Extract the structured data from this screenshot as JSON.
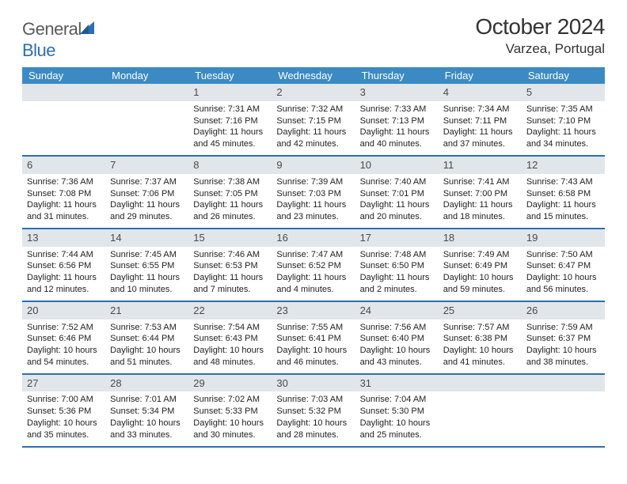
{
  "brand": {
    "name_gray": "General",
    "name_blue": "Blue"
  },
  "title": {
    "month": "October 2024",
    "location": "Varzea, Portugal"
  },
  "colors": {
    "header_bg": "#3b8ac4",
    "daynum_bg": "#e1e6ea",
    "week_border": "#2b6fb5",
    "text": "#222222",
    "logo_gray": "#5a5a5a",
    "logo_blue": "#2b6fb5"
  },
  "weekdays": [
    "Sunday",
    "Monday",
    "Tuesday",
    "Wednesday",
    "Thursday",
    "Friday",
    "Saturday"
  ],
  "weeks": [
    [
      {
        "n": "",
        "sr": "",
        "ss": "",
        "dl": ""
      },
      {
        "n": "",
        "sr": "",
        "ss": "",
        "dl": ""
      },
      {
        "n": "1",
        "sr": "Sunrise: 7:31 AM",
        "ss": "Sunset: 7:16 PM",
        "dl": "Daylight: 11 hours and 45 minutes."
      },
      {
        "n": "2",
        "sr": "Sunrise: 7:32 AM",
        "ss": "Sunset: 7:15 PM",
        "dl": "Daylight: 11 hours and 42 minutes."
      },
      {
        "n": "3",
        "sr": "Sunrise: 7:33 AM",
        "ss": "Sunset: 7:13 PM",
        "dl": "Daylight: 11 hours and 40 minutes."
      },
      {
        "n": "4",
        "sr": "Sunrise: 7:34 AM",
        "ss": "Sunset: 7:11 PM",
        "dl": "Daylight: 11 hours and 37 minutes."
      },
      {
        "n": "5",
        "sr": "Sunrise: 7:35 AM",
        "ss": "Sunset: 7:10 PM",
        "dl": "Daylight: 11 hours and 34 minutes."
      }
    ],
    [
      {
        "n": "6",
        "sr": "Sunrise: 7:36 AM",
        "ss": "Sunset: 7:08 PM",
        "dl": "Daylight: 11 hours and 31 minutes."
      },
      {
        "n": "7",
        "sr": "Sunrise: 7:37 AM",
        "ss": "Sunset: 7:06 PM",
        "dl": "Daylight: 11 hours and 29 minutes."
      },
      {
        "n": "8",
        "sr": "Sunrise: 7:38 AM",
        "ss": "Sunset: 7:05 PM",
        "dl": "Daylight: 11 hours and 26 minutes."
      },
      {
        "n": "9",
        "sr": "Sunrise: 7:39 AM",
        "ss": "Sunset: 7:03 PM",
        "dl": "Daylight: 11 hours and 23 minutes."
      },
      {
        "n": "10",
        "sr": "Sunrise: 7:40 AM",
        "ss": "Sunset: 7:01 PM",
        "dl": "Daylight: 11 hours and 20 minutes."
      },
      {
        "n": "11",
        "sr": "Sunrise: 7:41 AM",
        "ss": "Sunset: 7:00 PM",
        "dl": "Daylight: 11 hours and 18 minutes."
      },
      {
        "n": "12",
        "sr": "Sunrise: 7:43 AM",
        "ss": "Sunset: 6:58 PM",
        "dl": "Daylight: 11 hours and 15 minutes."
      }
    ],
    [
      {
        "n": "13",
        "sr": "Sunrise: 7:44 AM",
        "ss": "Sunset: 6:56 PM",
        "dl": "Daylight: 11 hours and 12 minutes."
      },
      {
        "n": "14",
        "sr": "Sunrise: 7:45 AM",
        "ss": "Sunset: 6:55 PM",
        "dl": "Daylight: 11 hours and 10 minutes."
      },
      {
        "n": "15",
        "sr": "Sunrise: 7:46 AM",
        "ss": "Sunset: 6:53 PM",
        "dl": "Daylight: 11 hours and 7 minutes."
      },
      {
        "n": "16",
        "sr": "Sunrise: 7:47 AM",
        "ss": "Sunset: 6:52 PM",
        "dl": "Daylight: 11 hours and 4 minutes."
      },
      {
        "n": "17",
        "sr": "Sunrise: 7:48 AM",
        "ss": "Sunset: 6:50 PM",
        "dl": "Daylight: 11 hours and 2 minutes."
      },
      {
        "n": "18",
        "sr": "Sunrise: 7:49 AM",
        "ss": "Sunset: 6:49 PM",
        "dl": "Daylight: 10 hours and 59 minutes."
      },
      {
        "n": "19",
        "sr": "Sunrise: 7:50 AM",
        "ss": "Sunset: 6:47 PM",
        "dl": "Daylight: 10 hours and 56 minutes."
      }
    ],
    [
      {
        "n": "20",
        "sr": "Sunrise: 7:52 AM",
        "ss": "Sunset: 6:46 PM",
        "dl": "Daylight: 10 hours and 54 minutes."
      },
      {
        "n": "21",
        "sr": "Sunrise: 7:53 AM",
        "ss": "Sunset: 6:44 PM",
        "dl": "Daylight: 10 hours and 51 minutes."
      },
      {
        "n": "22",
        "sr": "Sunrise: 7:54 AM",
        "ss": "Sunset: 6:43 PM",
        "dl": "Daylight: 10 hours and 48 minutes."
      },
      {
        "n": "23",
        "sr": "Sunrise: 7:55 AM",
        "ss": "Sunset: 6:41 PM",
        "dl": "Daylight: 10 hours and 46 minutes."
      },
      {
        "n": "24",
        "sr": "Sunrise: 7:56 AM",
        "ss": "Sunset: 6:40 PM",
        "dl": "Daylight: 10 hours and 43 minutes."
      },
      {
        "n": "25",
        "sr": "Sunrise: 7:57 AM",
        "ss": "Sunset: 6:38 PM",
        "dl": "Daylight: 10 hours and 41 minutes."
      },
      {
        "n": "26",
        "sr": "Sunrise: 7:59 AM",
        "ss": "Sunset: 6:37 PM",
        "dl": "Daylight: 10 hours and 38 minutes."
      }
    ],
    [
      {
        "n": "27",
        "sr": "Sunrise: 7:00 AM",
        "ss": "Sunset: 5:36 PM",
        "dl": "Daylight: 10 hours and 35 minutes."
      },
      {
        "n": "28",
        "sr": "Sunrise: 7:01 AM",
        "ss": "Sunset: 5:34 PM",
        "dl": "Daylight: 10 hours and 33 minutes."
      },
      {
        "n": "29",
        "sr": "Sunrise: 7:02 AM",
        "ss": "Sunset: 5:33 PM",
        "dl": "Daylight: 10 hours and 30 minutes."
      },
      {
        "n": "30",
        "sr": "Sunrise: 7:03 AM",
        "ss": "Sunset: 5:32 PM",
        "dl": "Daylight: 10 hours and 28 minutes."
      },
      {
        "n": "31",
        "sr": "Sunrise: 7:04 AM",
        "ss": "Sunset: 5:30 PM",
        "dl": "Daylight: 10 hours and 25 minutes."
      },
      {
        "n": "",
        "sr": "",
        "ss": "",
        "dl": ""
      },
      {
        "n": "",
        "sr": "",
        "ss": "",
        "dl": ""
      }
    ]
  ]
}
